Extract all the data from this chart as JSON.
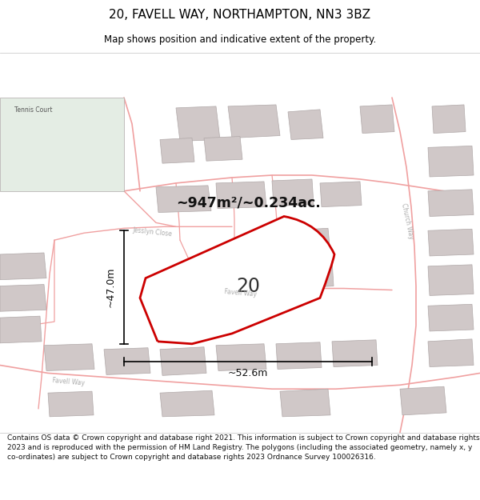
{
  "title": "20, FAVELL WAY, NORTHAMPTON, NN3 3BZ",
  "subtitle": "Map shows position and indicative extent of the property.",
  "footer": "Contains OS data © Crown copyright and database right 2021. This information is subject to Crown copyright and database rights 2023 and is reproduced with the permission of HM Land Registry. The polygons (including the associated geometry, namely x, y co-ordinates) are subject to Crown copyright and database rights 2023 Ordnance Survey 100026316.",
  "area_label": "~947m²/~0.234ac.",
  "width_label": "~52.6m",
  "height_label": "~47.0m",
  "property_number": "20",
  "map_bg": "#f0eeee",
  "block_color": "#d0c8c8",
  "road_color": "#f0a0a0",
  "highlight_color": "#cc0000",
  "tennis_color": "#e4ede4",
  "title_fontsize": 11,
  "subtitle_fontsize": 9,
  "footer_fontsize": 6.5
}
